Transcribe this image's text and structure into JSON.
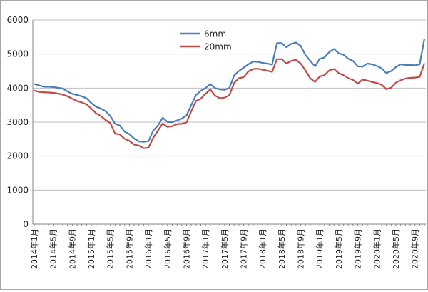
{
  "chart_data": {
    "type": "line",
    "title": "",
    "xlabel": "",
    "ylabel": "",
    "ylim": [
      0,
      6000
    ],
    "yticks": [
      0,
      1000,
      2000,
      3000,
      4000,
      5000,
      6000
    ],
    "grid": "horizontal",
    "legend": "top-center",
    "x_tick_labels": [
      "2014年1月",
      "2014年5月",
      "2014年9月",
      "2015年1月",
      "2015年5月",
      "2015年9月",
      "2016年1月",
      "2016年5月",
      "2016年9月",
      "2017年1月",
      "2017年5月",
      "2017年9月",
      "2018年1月",
      "2018年5月",
      "2018年9月",
      "2019年1月",
      "2019年5月",
      "2019年9月",
      "2020年1月",
      "2020年5月",
      "2020年9月"
    ],
    "x_start": "2014-01",
    "series": [
      {
        "name": "6mm",
        "color": "#4a7ebb",
        "values": [
          4120,
          4080,
          4040,
          4040,
          4030,
          4010,
          3990,
          3900,
          3830,
          3800,
          3760,
          3700,
          3560,
          3450,
          3400,
          3320,
          3180,
          2950,
          2900,
          2720,
          2650,
          2520,
          2430,
          2420,
          2440,
          2750,
          2900,
          3130,
          3000,
          3000,
          3050,
          3100,
          3200,
          3500,
          3800,
          3920,
          4000,
          4120,
          4000,
          3960,
          3950,
          4000,
          4370,
          4500,
          4600,
          4700,
          4780,
          4770,
          4740,
          4720,
          4690,
          5320,
          5320,
          5200,
          5300,
          5340,
          5240,
          4970,
          4800,
          4640,
          4860,
          4900,
          5060,
          5150,
          5020,
          4980,
          4860,
          4800,
          4640,
          4630,
          4720,
          4700,
          4650,
          4580,
          4440,
          4500,
          4620,
          4700,
          4680,
          4680,
          4670,
          4700,
          5450
        ]
      },
      {
        "name": "20mm",
        "color": "#be4b48",
        "values": [
          3930,
          3890,
          3880,
          3870,
          3860,
          3840,
          3810,
          3760,
          3690,
          3620,
          3580,
          3520,
          3400,
          3260,
          3180,
          3060,
          2970,
          2660,
          2640,
          2510,
          2450,
          2340,
          2310,
          2230,
          2250,
          2540,
          2750,
          2960,
          2860,
          2880,
          2940,
          2950,
          2990,
          3320,
          3620,
          3690,
          3830,
          3960,
          3780,
          3700,
          3720,
          3790,
          4150,
          4290,
          4320,
          4490,
          4560,
          4570,
          4540,
          4510,
          4480,
          4850,
          4850,
          4720,
          4800,
          4830,
          4720,
          4520,
          4290,
          4180,
          4340,
          4380,
          4520,
          4560,
          4440,
          4380,
          4290,
          4240,
          4130,
          4250,
          4220,
          4180,
          4150,
          4100,
          3970,
          4010,
          4160,
          4230,
          4280,
          4300,
          4310,
          4330,
          4730
        ]
      }
    ]
  }
}
